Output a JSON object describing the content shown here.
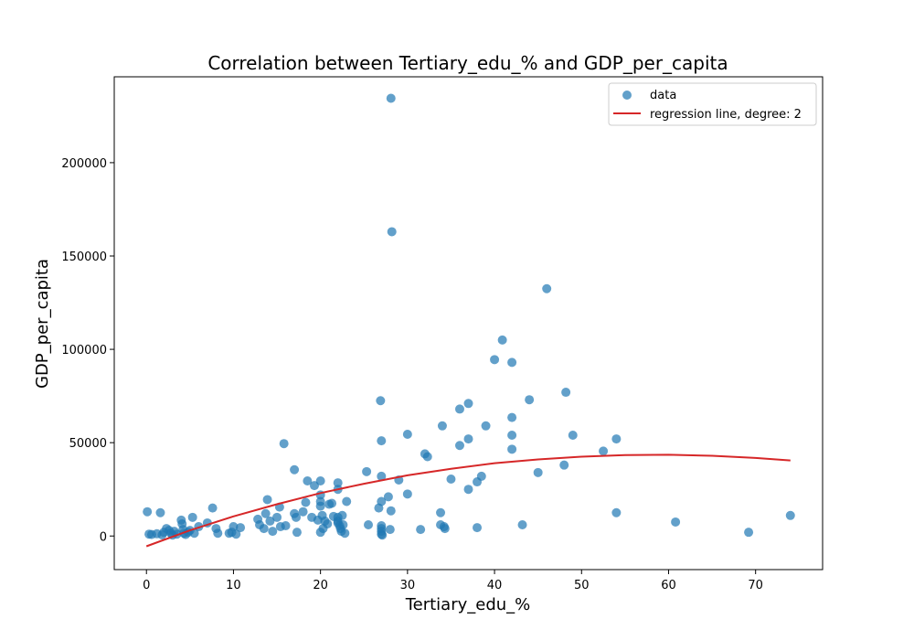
{
  "chart_data": {
    "type": "scatter",
    "title": "Correlation between Tertiary_edu_% and GDP_per_capita",
    "xlabel": "Tertiary_edu_%",
    "ylabel": "GDP_per_capita",
    "xlim": [
      -3.7,
      77.7
    ],
    "ylim": [
      -18000,
      246000
    ],
    "xticks": [
      0,
      10,
      20,
      30,
      40,
      50,
      60,
      70
    ],
    "yticks": [
      0,
      50000,
      100000,
      150000,
      200000
    ],
    "grid": false,
    "legend_position": "top-right",
    "colors": {
      "data": "#1f77b4",
      "regression": "#d62728"
    },
    "series": [
      {
        "name": "data",
        "kind": "scatter",
        "points": [
          [
            0.1,
            13000
          ],
          [
            0.3,
            1000
          ],
          [
            0.6,
            800
          ],
          [
            1.2,
            1200
          ],
          [
            1.6,
            12500
          ],
          [
            1.8,
            600
          ],
          [
            2.0,
            2000
          ],
          [
            2.3,
            4000
          ],
          [
            2.6,
            3000
          ],
          [
            2.8,
            1500
          ],
          [
            3.0,
            500
          ],
          [
            3.2,
            2500
          ],
          [
            3.5,
            1000
          ],
          [
            4.0,
            8500
          ],
          [
            4.1,
            6500
          ],
          [
            4.2,
            3500
          ],
          [
            4.3,
            1500
          ],
          [
            4.5,
            800
          ],
          [
            4.8,
            2000
          ],
          [
            5.0,
            3000
          ],
          [
            5.3,
            10000
          ],
          [
            5.5,
            1500
          ],
          [
            6.0,
            5000
          ],
          [
            7.0,
            7000
          ],
          [
            7.6,
            15000
          ],
          [
            8.0,
            4000
          ],
          [
            8.2,
            1500
          ],
          [
            9.5,
            1500
          ],
          [
            9.8,
            2000
          ],
          [
            10.0,
            5000
          ],
          [
            10.3,
            1000
          ],
          [
            10.8,
            4500
          ],
          [
            12.8,
            9000
          ],
          [
            13.0,
            6000
          ],
          [
            13.5,
            4000
          ],
          [
            13.7,
            12000
          ],
          [
            13.9,
            19500
          ],
          [
            14.2,
            8000
          ],
          [
            14.5,
            2500
          ],
          [
            15.0,
            10000
          ],
          [
            15.3,
            15500
          ],
          [
            15.4,
            5000
          ],
          [
            15.8,
            49500
          ],
          [
            16.0,
            5500
          ],
          [
            17.0,
            35500
          ],
          [
            17.0,
            12000
          ],
          [
            17.2,
            10000
          ],
          [
            17.3,
            2000
          ],
          [
            18.0,
            13000
          ],
          [
            18.3,
            18000
          ],
          [
            18.5,
            29500
          ],
          [
            19.0,
            10000
          ],
          [
            19.3,
            27000
          ],
          [
            19.7,
            8500
          ],
          [
            20.0,
            29500
          ],
          [
            20.0,
            22000
          ],
          [
            20.0,
            18500
          ],
          [
            20.0,
            16000
          ],
          [
            20.2,
            11000
          ],
          [
            20.3,
            4000
          ],
          [
            20.0,
            2000
          ],
          [
            20.5,
            8000
          ],
          [
            20.8,
            6500
          ],
          [
            21.0,
            17000
          ],
          [
            21.3,
            17500
          ],
          [
            21.5,
            10500
          ],
          [
            22.0,
            28500
          ],
          [
            22.0,
            25000
          ],
          [
            22.0,
            10000
          ],
          [
            22.0,
            8000
          ],
          [
            22.0,
            7000
          ],
          [
            22.2,
            5500
          ],
          [
            22.3,
            4000
          ],
          [
            22.4,
            2500
          ],
          [
            22.5,
            11000
          ],
          [
            22.6,
            6000
          ],
          [
            22.8,
            1500
          ],
          [
            23.0,
            18500
          ],
          [
            25.3,
            34500
          ],
          [
            25.5,
            6000
          ],
          [
            26.7,
            15000
          ],
          [
            26.9,
            72500
          ],
          [
            27.0,
            51000
          ],
          [
            27.0,
            32000
          ],
          [
            27.0,
            18500
          ],
          [
            27.0,
            5500
          ],
          [
            27.0,
            4000
          ],
          [
            27.0,
            2500
          ],
          [
            27.0,
            1000
          ],
          [
            27.1,
            500
          ],
          [
            27.8,
            21000
          ],
          [
            28.0,
            3500
          ],
          [
            28.1,
            13500
          ],
          [
            28.1,
            234500
          ],
          [
            28.2,
            163000
          ],
          [
            29.0,
            30000
          ],
          [
            30.0,
            54500
          ],
          [
            30.0,
            22500
          ],
          [
            31.5,
            3500
          ],
          [
            32.0,
            44000
          ],
          [
            32.3,
            42500
          ],
          [
            33.8,
            12500
          ],
          [
            33.8,
            6000
          ],
          [
            34.0,
            59000
          ],
          [
            34.2,
            5000
          ],
          [
            34.3,
            4000
          ],
          [
            35.0,
            30500
          ],
          [
            36.0,
            68000
          ],
          [
            36.0,
            48500
          ],
          [
            37.0,
            71000
          ],
          [
            37.0,
            52000
          ],
          [
            37.0,
            25000
          ],
          [
            38.0,
            29000
          ],
          [
            38.0,
            4500
          ],
          [
            38.5,
            32000
          ],
          [
            39.0,
            59000
          ],
          [
            40.0,
            94500
          ],
          [
            40.9,
            105000
          ],
          [
            42.0,
            93000
          ],
          [
            42.0,
            63500
          ],
          [
            42.0,
            54000
          ],
          [
            42.0,
            46500
          ],
          [
            43.2,
            6000
          ],
          [
            44.0,
            73000
          ],
          [
            45.0,
            34000
          ],
          [
            46.0,
            132500
          ],
          [
            48.0,
            38000
          ],
          [
            48.2,
            77000
          ],
          [
            49.0,
            54000
          ],
          [
            52.5,
            45500
          ],
          [
            54.0,
            52000
          ],
          [
            54.0,
            12500
          ],
          [
            60.8,
            7500
          ],
          [
            69.2,
            2000
          ],
          [
            74.0,
            11000
          ]
        ]
      },
      {
        "name": "regression line, degree: 2",
        "kind": "line",
        "x": [
          0,
          5,
          10,
          15,
          20,
          25,
          30,
          35,
          40,
          45,
          50,
          55,
          60,
          65,
          70,
          74
        ],
        "y": [
          -5500,
          3000,
          10500,
          17000,
          23000,
          28000,
          32500,
          36000,
          39000,
          41000,
          42500,
          43300,
          43500,
          43000,
          41800,
          40500
        ]
      }
    ]
  }
}
